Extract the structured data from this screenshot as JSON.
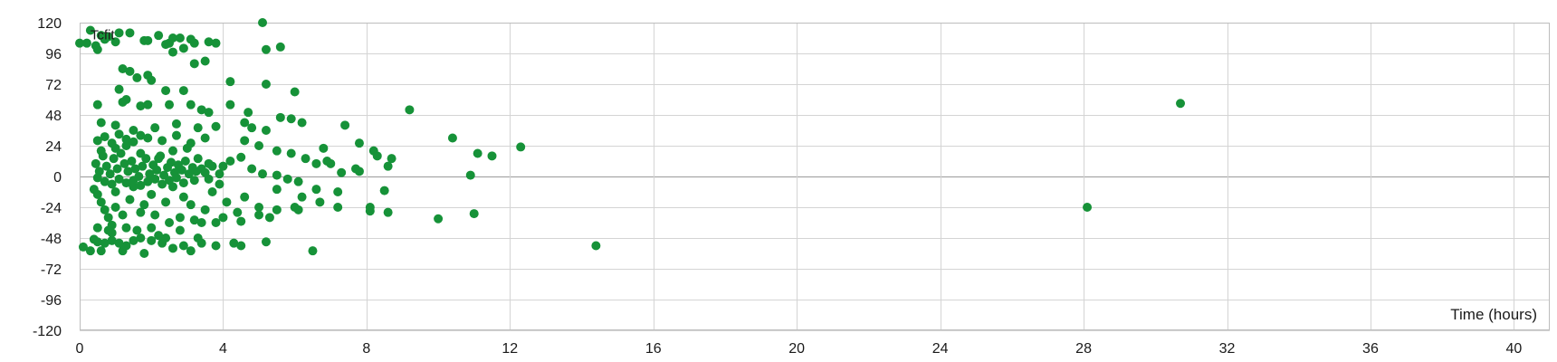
{
  "colors": {
    "marker": "#169238",
    "grid": "#d4d4d4",
    "zero_line": "#9a9a9a"
  },
  "chart_data": {
    "type": "scatter",
    "title": "",
    "xlabel": "Time (hours)",
    "ylabel": "",
    "xlim": [
      0,
      41
    ],
    "ylim": [
      -120,
      120
    ],
    "x_ticks": [
      0,
      4,
      8,
      12,
      16,
      20,
      24,
      28,
      32,
      36,
      40
    ],
    "y_ticks": [
      120,
      96,
      72,
      48,
      24,
      0,
      -24,
      -48,
      -72,
      -96,
      -120
    ],
    "grid": true,
    "legend": "none",
    "series": [
      {
        "name": "Tcfit",
        "color": "#169238",
        "points": [
          [
            0.0,
            104
          ],
          [
            0.2,
            104
          ],
          [
            0.45,
            102
          ],
          [
            0.5,
            99
          ],
          [
            0.3,
            114
          ],
          [
            0.6,
            110
          ],
          [
            0.7,
            107
          ],
          [
            0.8,
            109
          ],
          [
            1.0,
            105
          ],
          [
            1.1,
            112
          ],
          [
            1.4,
            112
          ],
          [
            1.8,
            106
          ],
          [
            1.9,
            106
          ],
          [
            2.2,
            110
          ],
          [
            2.4,
            103
          ],
          [
            2.5,
            104
          ],
          [
            2.6,
            108
          ],
          [
            2.8,
            108
          ],
          [
            2.9,
            100
          ],
          [
            3.1,
            107
          ],
          [
            3.2,
            104
          ],
          [
            3.6,
            105
          ],
          [
            3.8,
            104
          ],
          [
            5.1,
            120
          ],
          [
            5.2,
            99
          ],
          [
            5.6,
            101
          ],
          [
            2.6,
            97
          ],
          [
            3.2,
            88
          ],
          [
            3.5,
            90
          ],
          [
            1.2,
            84
          ],
          [
            1.4,
            82
          ],
          [
            1.6,
            77
          ],
          [
            1.9,
            79
          ],
          [
            2.0,
            75
          ],
          [
            4.2,
            74
          ],
          [
            5.2,
            72
          ],
          [
            6.0,
            66
          ],
          [
            2.4,
            67
          ],
          [
            2.9,
            67
          ],
          [
            1.1,
            68
          ],
          [
            0.5,
            56
          ],
          [
            1.2,
            58
          ],
          [
            1.3,
            60
          ],
          [
            1.7,
            55
          ],
          [
            1.9,
            56
          ],
          [
            2.5,
            56
          ],
          [
            3.1,
            56
          ],
          [
            4.2,
            56
          ],
          [
            3.4,
            52
          ],
          [
            3.6,
            50
          ],
          [
            4.7,
            50
          ],
          [
            9.2,
            52
          ],
          [
            5.6,
            46
          ],
          [
            5.9,
            45
          ],
          [
            6.2,
            42
          ],
          [
            4.6,
            42
          ],
          [
            4.8,
            38
          ],
          [
            5.2,
            36
          ],
          [
            7.4,
            40
          ],
          [
            0.6,
            42
          ],
          [
            1.0,
            40
          ],
          [
            1.5,
            36
          ],
          [
            2.1,
            38
          ],
          [
            2.7,
            41
          ],
          [
            3.3,
            38
          ],
          [
            3.8,
            39
          ],
          [
            7.8,
            26
          ],
          [
            10.4,
            30
          ],
          [
            11.1,
            18
          ],
          [
            11.5,
            16
          ],
          [
            12.3,
            23
          ],
          [
            6.8,
            22
          ],
          [
            8.2,
            20
          ],
          [
            8.7,
            14
          ],
          [
            5.9,
            18
          ],
          [
            6.3,
            14
          ],
          [
            7.0,
            10
          ],
          [
            7.7,
            6
          ],
          [
            4.6,
            28
          ],
          [
            5.0,
            24
          ],
          [
            5.5,
            20
          ],
          [
            6.6,
            10
          ],
          [
            6.9,
            12
          ],
          [
            8.6,
            8
          ],
          [
            10.9,
            1
          ],
          [
            7.3,
            3
          ],
          [
            7.8,
            4
          ],
          [
            8.3,
            16
          ],
          [
            30.7,
            57
          ],
          [
            28.1,
            -24
          ],
          [
            14.4,
            -54
          ],
          [
            10.0,
            -33
          ],
          [
            11.0,
            -29
          ],
          [
            8.1,
            -24
          ],
          [
            8.6,
            -28
          ],
          [
            8.5,
            -11
          ],
          [
            8.1,
            -27
          ],
          [
            7.2,
            -12
          ],
          [
            7.2,
            -24
          ],
          [
            6.7,
            -20
          ],
          [
            6.1,
            -26
          ],
          [
            6.2,
            -16
          ],
          [
            6.6,
            -10
          ],
          [
            6.0,
            -24
          ],
          [
            5.5,
            -10
          ],
          [
            5.5,
            -26
          ],
          [
            5.3,
            -32
          ],
          [
            5.0,
            -24
          ],
          [
            5.0,
            -30
          ],
          [
            6.5,
            -58
          ],
          [
            5.2,
            -51
          ],
          [
            4.3,
            -52
          ],
          [
            4.5,
            -54
          ],
          [
            3.1,
            -58
          ],
          [
            2.6,
            -56
          ],
          [
            2.3,
            -52
          ],
          [
            0.1,
            -55
          ],
          [
            0.3,
            -58
          ],
          [
            0.6,
            -58
          ],
          [
            1.2,
            -58
          ],
          [
            1.8,
            -60
          ],
          [
            4.5,
            -35
          ],
          [
            4.6,
            -16
          ],
          [
            4.4,
            -28
          ],
          [
            4.0,
            -32
          ],
          [
            3.8,
            -36
          ],
          [
            3.4,
            -36
          ],
          [
            3.2,
            -34
          ],
          [
            2.8,
            -32
          ],
          [
            2.5,
            -36
          ],
          [
            2.0,
            -40
          ],
          [
            1.6,
            -42
          ],
          [
            1.3,
            -40
          ],
          [
            0.9,
            -44
          ],
          [
            0.8,
            -42
          ],
          [
            0.5,
            -40
          ],
          [
            0.6,
            20
          ],
          [
            1.0,
            22
          ],
          [
            1.3,
            24
          ],
          [
            1.7,
            18
          ],
          [
            2.2,
            14
          ],
          [
            2.6,
            20
          ],
          [
            3.0,
            22
          ],
          [
            3.3,
            14
          ],
          [
            3.6,
            10
          ],
          [
            4.0,
            8
          ],
          [
            4.2,
            12
          ],
          [
            4.5,
            15
          ],
          [
            4.8,
            6
          ],
          [
            5.1,
            2
          ],
          [
            5.5,
            1
          ],
          [
            5.8,
            -2
          ],
          [
            6.1,
            -4
          ],
          [
            0.4,
            -10
          ],
          [
            0.5,
            -14
          ],
          [
            0.6,
            -20
          ],
          [
            0.7,
            -26
          ],
          [
            0.8,
            -32
          ],
          [
            0.9,
            -38
          ],
          [
            1.0,
            -24
          ],
          [
            1.0,
            -12
          ],
          [
            1.2,
            -30
          ],
          [
            1.4,
            -18
          ],
          [
            1.5,
            -8
          ],
          [
            1.7,
            -28
          ],
          [
            1.8,
            -22
          ],
          [
            2.0,
            -14
          ],
          [
            2.1,
            -30
          ],
          [
            2.2,
            -46
          ],
          [
            2.4,
            -20
          ],
          [
            2.6,
            -8
          ],
          [
            2.8,
            -42
          ],
          [
            2.9,
            -16
          ],
          [
            3.1,
            -22
          ],
          [
            3.3,
            -48
          ],
          [
            3.5,
            -26
          ],
          [
            3.7,
            -12
          ],
          [
            3.9,
            -6
          ],
          [
            4.1,
            -20
          ],
          [
            0.4,
            -49
          ],
          [
            0.5,
            -51
          ],
          [
            0.7,
            -52
          ],
          [
            0.9,
            -50
          ],
          [
            1.1,
            -52
          ],
          [
            1.3,
            -54
          ],
          [
            1.5,
            -50
          ],
          [
            1.7,
            -48
          ],
          [
            2.0,
            -50
          ],
          [
            2.4,
            -48
          ],
          [
            2.9,
            -54
          ],
          [
            3.4,
            -52
          ],
          [
            3.8,
            -54
          ],
          [
            0.45,
            10
          ],
          [
            0.55,
            4
          ],
          [
            0.65,
            16
          ],
          [
            0.75,
            8
          ],
          [
            0.85,
            2
          ],
          [
            0.95,
            14
          ],
          [
            1.05,
            6
          ],
          [
            1.15,
            18
          ],
          [
            1.25,
            10
          ],
          [
            1.35,
            4
          ],
          [
            1.45,
            12
          ],
          [
            1.55,
            6
          ],
          [
            1.65,
            0
          ],
          [
            1.75,
            8
          ],
          [
            1.85,
            14
          ],
          [
            1.95,
            2
          ],
          [
            2.05,
            9
          ],
          [
            2.15,
            5
          ],
          [
            2.25,
            16
          ],
          [
            2.35,
            1
          ],
          [
            2.45,
            7
          ],
          [
            2.55,
            11
          ],
          [
            2.65,
            3
          ],
          [
            2.75,
            9
          ],
          [
            2.85,
            5
          ],
          [
            2.95,
            12
          ],
          [
            3.05,
            2
          ],
          [
            3.15,
            7
          ],
          [
            3.25,
            4
          ],
          [
            3.4,
            6
          ],
          [
            3.5,
            3
          ],
          [
            3.7,
            8
          ],
          [
            3.9,
            2
          ],
          [
            0.5,
            28
          ],
          [
            0.7,
            31
          ],
          [
            0.9,
            26
          ],
          [
            1.1,
            33
          ],
          [
            1.3,
            29
          ],
          [
            1.5,
            27
          ],
          [
            1.7,
            32
          ],
          [
            1.9,
            30
          ],
          [
            2.3,
            28
          ],
          [
            2.7,
            32
          ],
          [
            3.1,
            26
          ],
          [
            3.5,
            30
          ],
          [
            0.5,
            -1
          ],
          [
            0.7,
            -4
          ],
          [
            0.9,
            -6
          ],
          [
            1.1,
            -2
          ],
          [
            1.3,
            -5
          ],
          [
            1.5,
            -3
          ],
          [
            1.7,
            -7
          ],
          [
            1.9,
            -4
          ],
          [
            2.1,
            -2
          ],
          [
            2.3,
            -6
          ],
          [
            2.5,
            -3
          ],
          [
            2.7,
            -1
          ],
          [
            2.9,
            -5
          ],
          [
            3.2,
            -3
          ],
          [
            3.6,
            -2
          ]
        ]
      }
    ]
  }
}
